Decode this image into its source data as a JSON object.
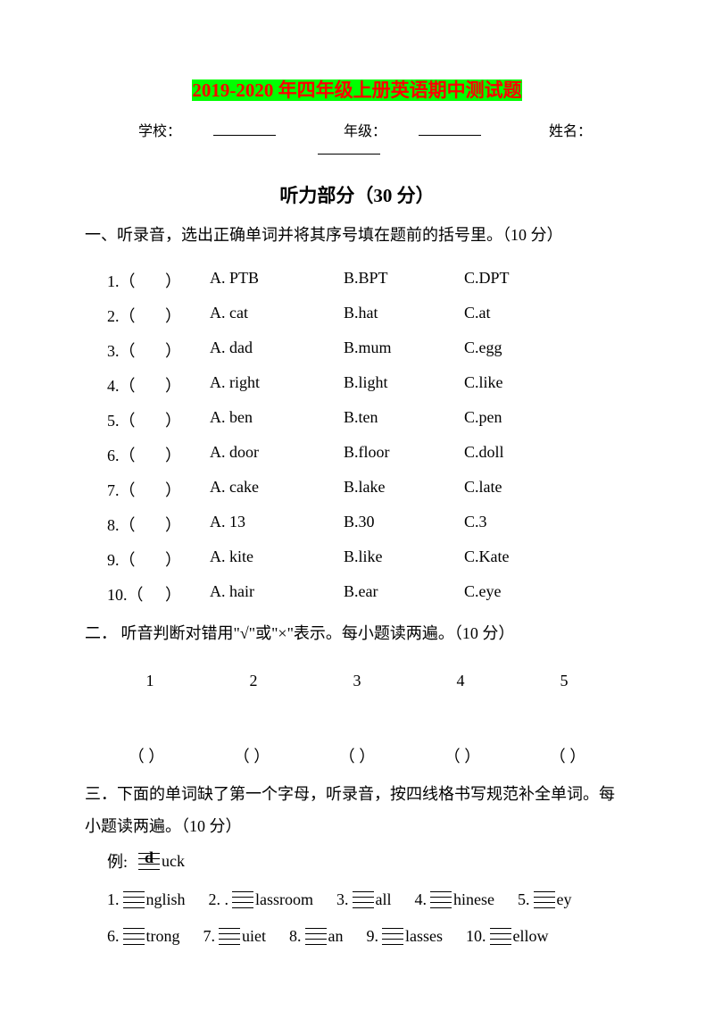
{
  "title": {
    "year": "2019-2020",
    "rest": " 年四年级上册英语期中测试题"
  },
  "info": {
    "school_label": "学校：",
    "grade_label": "年级：",
    "name_label": "姓名："
  },
  "listening_title": "听力部分（30 分）",
  "section1": {
    "header": "一、听录音，选出正确单词并将其序号填在题前的括号里。（10 分）",
    "questions": [
      {
        "num": "1.",
        "a": "A. PTB",
        "b": "B.BPT",
        "c": "C.DPT"
      },
      {
        "num": "2.",
        "a": "A. cat",
        "b": "B.hat",
        "c": "C.at"
      },
      {
        "num": "3.",
        "a": "A. dad",
        "b": "B.mum",
        "c": "C.egg"
      },
      {
        "num": "4.",
        "a": "A. right",
        "b": "B.light",
        "c": "C.like"
      },
      {
        "num": "5.",
        "a": "A. ben",
        "b": "B.ten",
        "c": "C.pen"
      },
      {
        "num": "6.",
        "a": "A. door",
        "b": "B.floor",
        "c": "C.doll"
      },
      {
        "num": "7.",
        "a": "A. cake",
        "b": "B.lake",
        "c": "C.late"
      },
      {
        "num": "8.",
        "a": "A. 13",
        "b": "B.30",
        "c": "C.3"
      },
      {
        "num": "9.",
        "a": "A. kite",
        "b": "B.like",
        "c": "C.Kate"
      },
      {
        "num": "10.",
        "a": "A. hair",
        "b": "B.ear",
        "c": "C.eye"
      }
    ]
  },
  "section2": {
    "header": "二．  听音判断对错用\"√\"或\"×\"表示。每小题读两遍。（10 分）",
    "nums": [
      "1",
      "2",
      "3",
      "4",
      "5"
    ],
    "parens": [
      "（      ）",
      "（      ）",
      "（      ）",
      "（      ）",
      "（      ）"
    ]
  },
  "section3": {
    "header": "三．下面的单词缺了第一个字母，听录音，按四线格书写规范补全单词。每小题读两遍。（10 分）",
    "example_label": "例:",
    "example_letter": "d",
    "example_word": "uck",
    "row1": [
      {
        "num": "1.",
        "word": "nglish"
      },
      {
        "num": "2. .",
        "word": "lassroom"
      },
      {
        "num": "3.",
        "word": "all"
      },
      {
        "num": "4.",
        "word": "hinese"
      },
      {
        "num": "5.",
        "word": "ey"
      }
    ],
    "row2": [
      {
        "num": "6.",
        "word": "trong"
      },
      {
        "num": "7.",
        "word": "uiet"
      },
      {
        "num": "8.",
        "word": "an"
      },
      {
        "num": "9.",
        "word": "lasses"
      },
      {
        "num": "10.",
        "word": "ellow"
      }
    ]
  }
}
